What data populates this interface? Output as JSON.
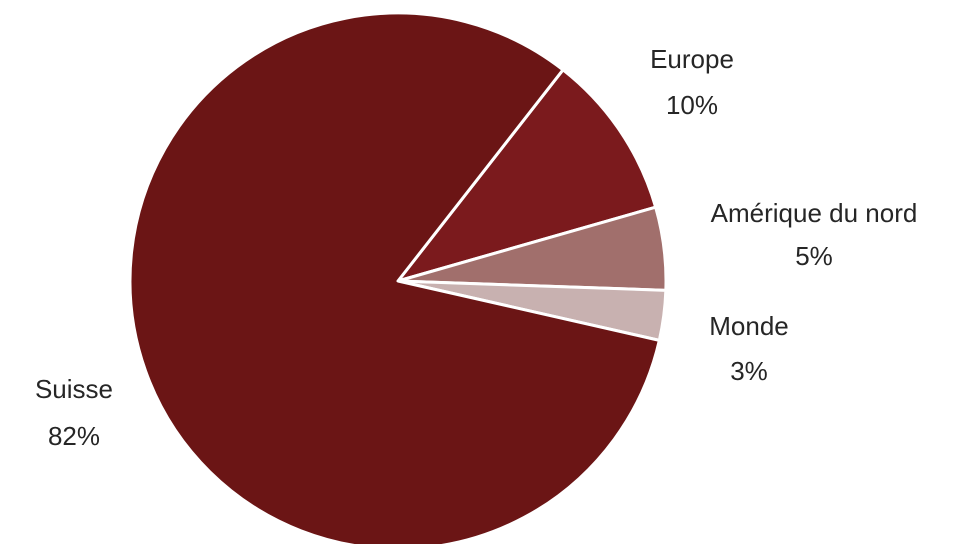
{
  "chart_data": {
    "type": "pie",
    "start_angle_deg": 52,
    "direction": "clockwise",
    "slices": [
      {
        "label": "Europe",
        "value": 10,
        "value_label": "10%",
        "color": "#7B1A1D"
      },
      {
        "label": "Amérique du nord",
        "value": 5,
        "value_label": "5%",
        "color": "#A16F6C"
      },
      {
        "label": "Monde",
        "value": 3,
        "value_label": "3%",
        "color": "#C8B1B0"
      },
      {
        "label": "Suisse",
        "value": 82,
        "value_label": "82%",
        "color": "#6B1515"
      }
    ]
  }
}
